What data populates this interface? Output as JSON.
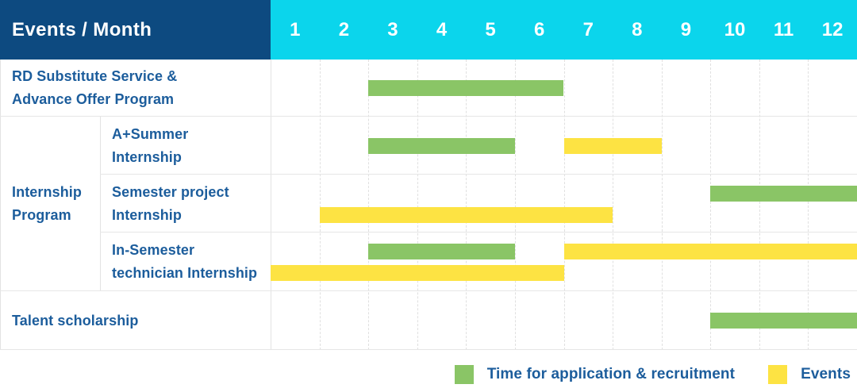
{
  "header": {
    "title": "Events / Month"
  },
  "colors": {
    "header_bg": "#0d4a80",
    "months_header_bg": "#0bd5ec",
    "header_text": "#ffffff",
    "label_text": "#1c5d9c",
    "application": "#8ac566",
    "events": "#fde343",
    "grid_line": "#e3e3e3"
  },
  "chart_data": {
    "type": "gantt",
    "title": "Events / Month",
    "months": [
      "1",
      "2",
      "3",
      "4",
      "5",
      "6",
      "7",
      "8",
      "9",
      "10",
      "11",
      "12"
    ],
    "series_legend": [
      {
        "series": "application",
        "label": "Time for application & recruitment"
      },
      {
        "series": "events",
        "label": "Events"
      }
    ],
    "row_groups": [
      {
        "label_lines": [
          "Internship",
          "Program"
        ],
        "row_start": 1,
        "row_end": 3
      }
    ],
    "rows": [
      {
        "label_lines": [
          "RD Substitute Service &",
          "Advance Offer Program"
        ],
        "in_group": false,
        "bars": [
          {
            "series": "application",
            "start_month": 3,
            "end_month": 6,
            "lane": "center"
          }
        ]
      },
      {
        "label_lines": [
          "A+Summer",
          "Internship"
        ],
        "in_group": true,
        "bars": [
          {
            "series": "application",
            "start_month": 3,
            "end_month": 5,
            "lane": "center"
          },
          {
            "series": "events",
            "start_month": 7,
            "end_month": 8,
            "lane": "center"
          }
        ]
      },
      {
        "label_lines": [
          "Semester project",
          "Internship"
        ],
        "in_group": true,
        "bars": [
          {
            "series": "application",
            "start_month": 10,
            "end_month": 12,
            "lane": "upper"
          },
          {
            "series": "events",
            "start_month": 2,
            "end_month": 7,
            "lane": "lower"
          }
        ]
      },
      {
        "label_lines": [
          "In-Semester",
          "technician Internship"
        ],
        "in_group": true,
        "bars": [
          {
            "series": "application",
            "start_month": 3,
            "end_month": 5,
            "lane": "upper"
          },
          {
            "series": "events",
            "start_month": 7,
            "end_month": 12,
            "lane": "upper"
          },
          {
            "series": "events",
            "start_month": 1,
            "end_month": 6,
            "lane": "lower"
          }
        ]
      },
      {
        "label_lines": [
          "Talent scholarship"
        ],
        "in_group": false,
        "bars": [
          {
            "series": "application",
            "start_month": 10,
            "end_month": 12,
            "lane": "center"
          }
        ]
      }
    ]
  },
  "legend": {
    "items": [
      {
        "series": "application",
        "label": "Time for application & recruitment"
      },
      {
        "series": "events",
        "label": "Events"
      }
    ]
  }
}
